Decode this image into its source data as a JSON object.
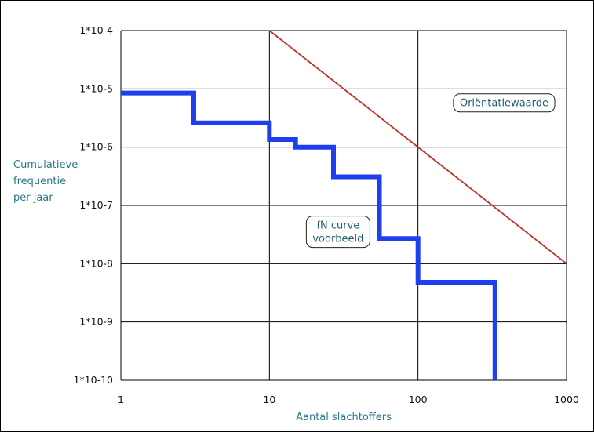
{
  "chart_data": {
    "type": "line",
    "xscale": "log",
    "yscale": "log",
    "xlim": [
      1,
      1000
    ],
    "ylim": [
      1e-10,
      0.0001
    ],
    "grid": true,
    "xlabel": "Aantal slachtoffers",
    "ylabel_lines": [
      "Cumulatieve",
      "frequentie",
      "per jaar"
    ],
    "x_ticks": [
      {
        "value": 1,
        "label": "1"
      },
      {
        "value": 10,
        "label": "10"
      },
      {
        "value": 100,
        "label": "100"
      },
      {
        "value": 1000,
        "label": "1000"
      }
    ],
    "y_ticks": [
      {
        "value": 0.0001,
        "label": "1*10-4"
      },
      {
        "value": 1e-05,
        "label": "1*10-5"
      },
      {
        "value": 1e-06,
        "label": "1*10-6"
      },
      {
        "value": 1e-07,
        "label": "1*10-7"
      },
      {
        "value": 1e-08,
        "label": "1*10-8"
      },
      {
        "value": 1e-09,
        "label": "1*10-9"
      },
      {
        "value": 1e-10,
        "label": "1*10-10"
      }
    ],
    "series": [
      {
        "kind": "reference-line",
        "color": "#c0302a",
        "points": [
          {
            "x": 10,
            "y": 0.0001
          },
          {
            "x": 1000,
            "y": 1e-08
          }
        ]
      },
      {
        "kind": "step",
        "color": "#1e3ff0",
        "points": [
          {
            "x": 1,
            "y": 8.5e-06
          },
          {
            "x": 3.1,
            "y": 8.5e-06
          },
          {
            "x": 3.1,
            "y": 2.6e-06
          },
          {
            "x": 10,
            "y": 2.6e-06
          },
          {
            "x": 10,
            "y": 1.35e-06
          },
          {
            "x": 15,
            "y": 1.35e-06
          },
          {
            "x": 15,
            "y": 1e-06
          },
          {
            "x": 27,
            "y": 1e-06
          },
          {
            "x": 27,
            "y": 3.1e-07
          },
          {
            "x": 55,
            "y": 3.1e-07
          },
          {
            "x": 55,
            "y": 2.7e-08
          },
          {
            "x": 100,
            "y": 2.7e-08
          },
          {
            "x": 100,
            "y": 4.8e-09
          },
          {
            "x": 330,
            "y": 4.8e-09
          },
          {
            "x": 330,
            "y": 1e-10
          }
        ]
      }
    ],
    "annotations": [
      {
        "id": "orientatiewaarde",
        "lines": [
          "Oriëntatiewaarde"
        ],
        "x": 380,
        "y": 5e-06
      },
      {
        "id": "fn-curve",
        "lines": [
          "fN curve",
          "voorbeeld"
        ],
        "x": 29,
        "y": 4e-08
      }
    ]
  }
}
